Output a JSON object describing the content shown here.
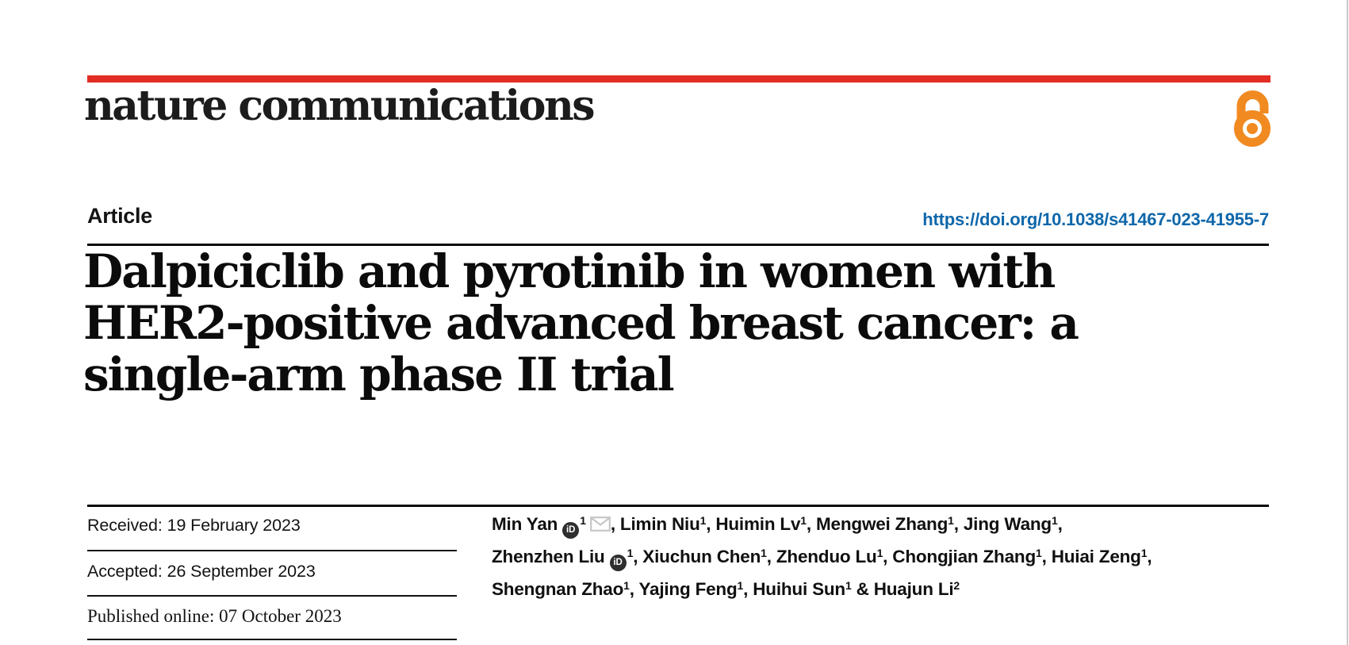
{
  "journal": {
    "name": "nature communications"
  },
  "article": {
    "type_label": "Article",
    "doi_url": "https://doi.org/10.1038/s41467-023-41955-7",
    "title_lines": [
      "Dalpiciclib and pyrotinib in women with",
      "HER2-positive advanced breast cancer: a",
      "single-arm phase II trial"
    ]
  },
  "history": {
    "rows": [
      {
        "label": "Received:",
        "value": "19 February 2023"
      },
      {
        "label": "Accepted:",
        "value": "26 September 2023"
      },
      {
        "label": "Published online:",
        "value": "07 October 2023"
      }
    ]
  },
  "authors": {
    "lines": [
      [
        {
          "name": "Min Yan",
          "orcid": true,
          "sup": "1",
          "email": true,
          "trail": ", "
        },
        {
          "name": "Limin Niu",
          "sup": "1",
          "trail": ", "
        },
        {
          "name": "Huimin Lv",
          "sup": "1",
          "trail": ", "
        },
        {
          "name": "Mengwei Zhang",
          "sup": "1",
          "trail": ", "
        },
        {
          "name": "Jing Wang",
          "sup": "1",
          "trail": ","
        }
      ],
      [
        {
          "name": "Zhenzhen Liu",
          "orcid": true,
          "sup": "1",
          "trail": ", "
        },
        {
          "name": "Xiuchun Chen",
          "sup": "1",
          "trail": ", "
        },
        {
          "name": "Zhenduo Lu",
          "sup": "1",
          "trail": ", "
        },
        {
          "name": "Chongjian Zhang",
          "sup": "1",
          "trail": ", "
        },
        {
          "name": "Huiai Zeng",
          "sup": "1",
          "trail": ","
        }
      ],
      [
        {
          "name": "Shengnan Zhao",
          "sup": "1",
          "trail": ", "
        },
        {
          "name": "Yajing Feng",
          "sup": "1",
          "trail": ", "
        },
        {
          "name": "Huihui Sun",
          "sup": "1",
          "trail": " & "
        },
        {
          "name": "Huajun Li",
          "sup": "2",
          "trail": ""
        }
      ]
    ]
  },
  "icons": {
    "orcid_glyph": "iD",
    "orcid": "orcid-id-circle",
    "email": "envelope",
    "open_access": "open-access-padlock"
  },
  "colors": {
    "brand_red": "#e22d24",
    "link_blue": "#0f67aa",
    "oa_orange": "#f18a21",
    "ink": "#131313",
    "icon_gray": "#c6c6c6",
    "page_edge": "#c9c9c9"
  }
}
